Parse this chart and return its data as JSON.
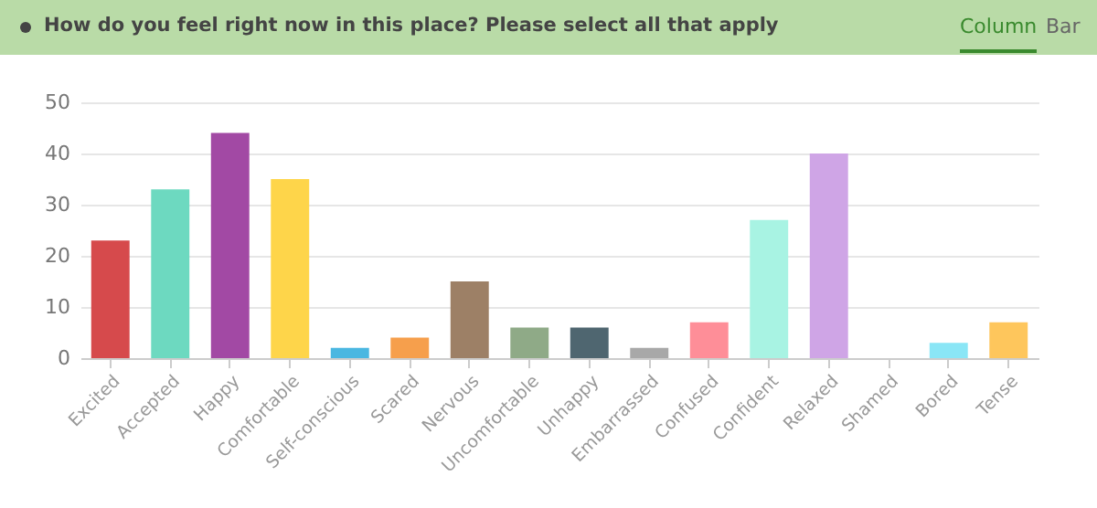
{
  "chart_data": {
    "type": "bar",
    "title": "How do you feel right now in this place? Please select all that apply",
    "annotations": [
      "Column",
      "Bar"
    ],
    "categories": [
      "Excited",
      "Accepted",
      "Happy",
      "Comfortable",
      "Self-conscious",
      "Scared",
      "Nervous",
      "Uncomfortable",
      "Unhappy",
      "Embarrassed",
      "Confused",
      "Confident",
      "Relaxed",
      "Shamed",
      "Bored",
      "Tense"
    ],
    "values": [
      23,
      33,
      44,
      35,
      2,
      4,
      15,
      6,
      6,
      2,
      7,
      27,
      40,
      0,
      3,
      7
    ],
    "colors": [
      "#d64a4c",
      "#6dd9c0",
      "#a249a4",
      "#fed54a",
      "#4ab7e1",
      "#f69f4c",
      "#9d8066",
      "#8faa87",
      "#4f6670",
      "#a8a8a8",
      "#fe8e98",
      "#a8f3e3",
      "#cfa5e6",
      "#cccccc",
      "#8ae6f6",
      "#fec65c"
    ],
    "ylim": [
      0,
      50
    ],
    "yticks": [
      0,
      10,
      20,
      30,
      40,
      50
    ],
    "grid": "y",
    "legend": false
  }
}
